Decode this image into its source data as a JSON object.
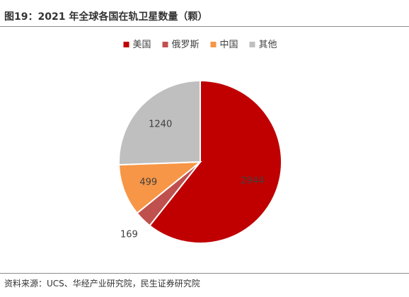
{
  "title": "图19：2021 年全球各国在轨卫星数量（颗）",
  "source": "资料来源：UCS、华经产业研究院，民生证券研究院",
  "chart_data": {
    "type": "pie",
    "categories": [
      "美国",
      "俄罗斯",
      "中国",
      "其他"
    ],
    "values": [
      2944,
      169,
      499,
      1240
    ],
    "colors": [
      "#c00000",
      "#c0504d",
      "#f79646",
      "#bfbfbf"
    ],
    "legend_position": "top",
    "start_angle": "12 o'clock",
    "direction": "clockwise"
  }
}
